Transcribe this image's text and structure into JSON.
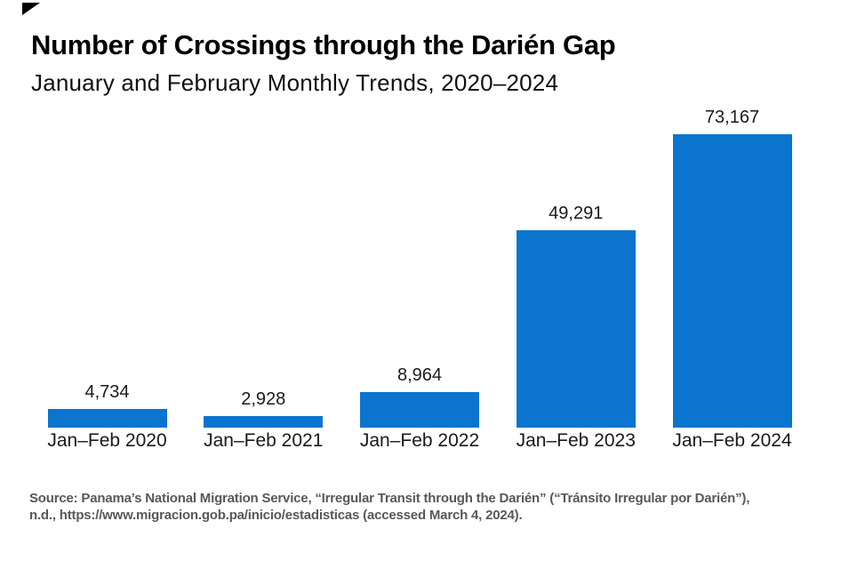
{
  "header": {
    "title": "Number of Crossings through the Darién Gap",
    "subtitle": "January and February Monthly Trends, 2020–2024"
  },
  "source": {
    "line1": "Source: Panama’s National Migration Service, “Irregular Transit through the Darién” (“Tránsito Irregular por Darién”),",
    "line2": "n.d., https://www.migracion.gob.pa/inicio/estadisticas (accessed March 4, 2024)."
  },
  "icons": {
    "corner_mark": "black-triangle-wedge"
  },
  "colors": {
    "bar": "#0a74ce",
    "title_text": "#000000",
    "label_text": "#1a1a1a",
    "source_text": "#58585b",
    "background": "#ffffff"
  },
  "chart_data": {
    "type": "bar",
    "title": "Number of Crossings through the Darién Gap",
    "subtitle": "January and February Monthly Trends, 2020–2024",
    "categories": [
      "Jan–Feb 2020",
      "Jan–Feb 2021",
      "Jan–Feb 2022",
      "Jan–Feb 2023",
      "Jan–Feb 2024"
    ],
    "values": [
      4734,
      2928,
      8964,
      49291,
      73167
    ],
    "value_labels": [
      "4,734",
      "2,928",
      "8,964",
      "49,291",
      "73,167"
    ],
    "bar_color": "#0a74ce",
    "xlabel": "",
    "ylabel": "",
    "ylim": [
      0,
      73167
    ],
    "grid": false,
    "axis_lines": false,
    "legend": "none",
    "value_labels_position": "above-bars",
    "category_labels_position": "below-bars"
  }
}
